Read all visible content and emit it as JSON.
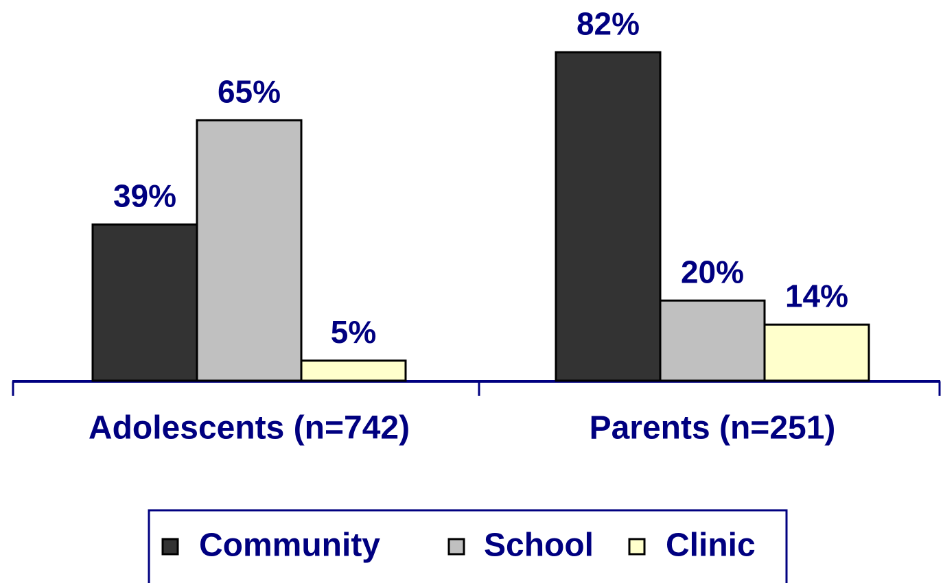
{
  "chart_data": {
    "type": "bar",
    "categories": [
      "Adolescents (n=742)",
      "Parents (n=251)"
    ],
    "series": [
      {
        "name": "Community",
        "color": "#333333",
        "values": [
          39,
          82
        ],
        "value_labels": [
          "39%",
          "82%"
        ]
      },
      {
        "name": "School",
        "color": "#c0c0c0",
        "values": [
          65,
          20
        ],
        "value_labels": [
          "65%",
          "20%"
        ]
      },
      {
        "name": "Clinic",
        "color": "#ffffcc",
        "values": [
          5,
          14
        ],
        "value_labels": [
          "5%",
          "14%"
        ]
      }
    ],
    "legend": "bottom"
  }
}
